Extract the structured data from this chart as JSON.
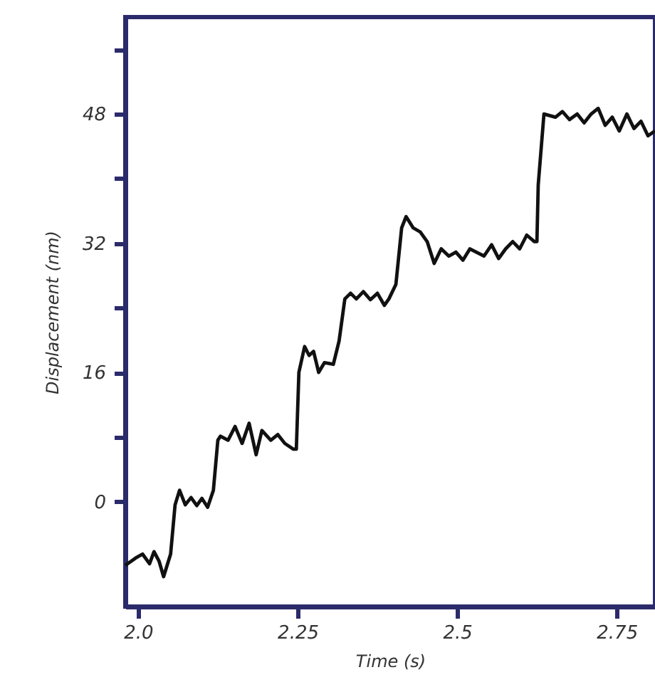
{
  "chart_data": {
    "type": "line",
    "xlabel": "Time (s)",
    "ylabel": "Displacement (nm)",
    "xlim": [
      1.98,
      2.81
    ],
    "ylim": [
      -13,
      60
    ],
    "xticks": [
      {
        "value": 2.0,
        "label": "2.0"
      },
      2.25,
      2.5,
      2.75
    ],
    "yticks": [
      0,
      {
        "value": 8,
        "label": null
      },
      16,
      {
        "value": 24,
        "label": null
      },
      32,
      {
        "value": 40,
        "label": null
      },
      48,
      {
        "value": 56,
        "label": null
      }
    ],
    "grid": false,
    "marker": "none",
    "line_style": "solid",
    "series": [
      {
        "color": "#111111",
        "x": [
          1.98,
          1.996,
          2.007,
          2.018,
          2.025,
          2.033,
          2.04,
          2.051,
          2.058,
          2.065,
          2.074,
          2.083,
          2.092,
          2.1,
          2.109,
          2.118,
          2.125,
          2.129,
          2.141,
          2.152,
          2.163,
          2.174,
          2.185,
          2.194,
          2.208,
          2.219,
          2.23,
          2.243,
          2.248,
          2.252,
          2.261,
          2.268,
          2.275,
          2.283,
          2.292,
          2.306,
          2.315,
          2.324,
          2.333,
          2.342,
          2.353,
          2.364,
          2.375,
          2.386,
          2.393,
          2.404,
          2.413,
          2.42,
          2.431,
          2.442,
          2.453,
          2.464,
          2.475,
          2.487,
          2.498,
          2.509,
          2.52,
          2.542,
          2.554,
          2.565,
          2.576,
          2.587,
          2.598,
          2.609,
          2.621,
          2.625,
          2.627,
          2.636,
          2.654,
          2.665,
          2.676,
          2.688,
          2.699,
          2.71,
          2.721,
          2.732,
          2.743,
          2.754,
          2.766,
          2.777,
          2.788,
          2.799,
          2.81
        ],
        "values": [
          -7.9,
          -7.0,
          -6.5,
          -7.7,
          -6.2,
          -7.4,
          -9.3,
          -6.5,
          -0.4,
          1.4,
          -0.4,
          0.5,
          -0.5,
          0.4,
          -0.7,
          1.4,
          7.6,
          8.1,
          7.6,
          9.3,
          7.2,
          9.7,
          5.8,
          8.8,
          7.6,
          8.3,
          7.2,
          6.5,
          6.5,
          16.0,
          19.2,
          18.1,
          18.6,
          16.0,
          17.2,
          17.0,
          19.9,
          25.1,
          25.8,
          25.1,
          26.0,
          25.0,
          25.8,
          24.3,
          25.1,
          26.9,
          33.9,
          35.3,
          33.9,
          33.4,
          32.2,
          29.5,
          31.3,
          30.4,
          30.9,
          29.9,
          31.3,
          30.4,
          31.8,
          30.1,
          31.3,
          32.2,
          31.3,
          33.0,
          32.2,
          32.2,
          39.2,
          48.0,
          47.6,
          48.3,
          47.3,
          48.0,
          46.9,
          48.0,
          48.7,
          46.6,
          47.6,
          45.9,
          48.0,
          46.2,
          47.1,
          45.3,
          45.9
        ]
      }
    ]
  }
}
